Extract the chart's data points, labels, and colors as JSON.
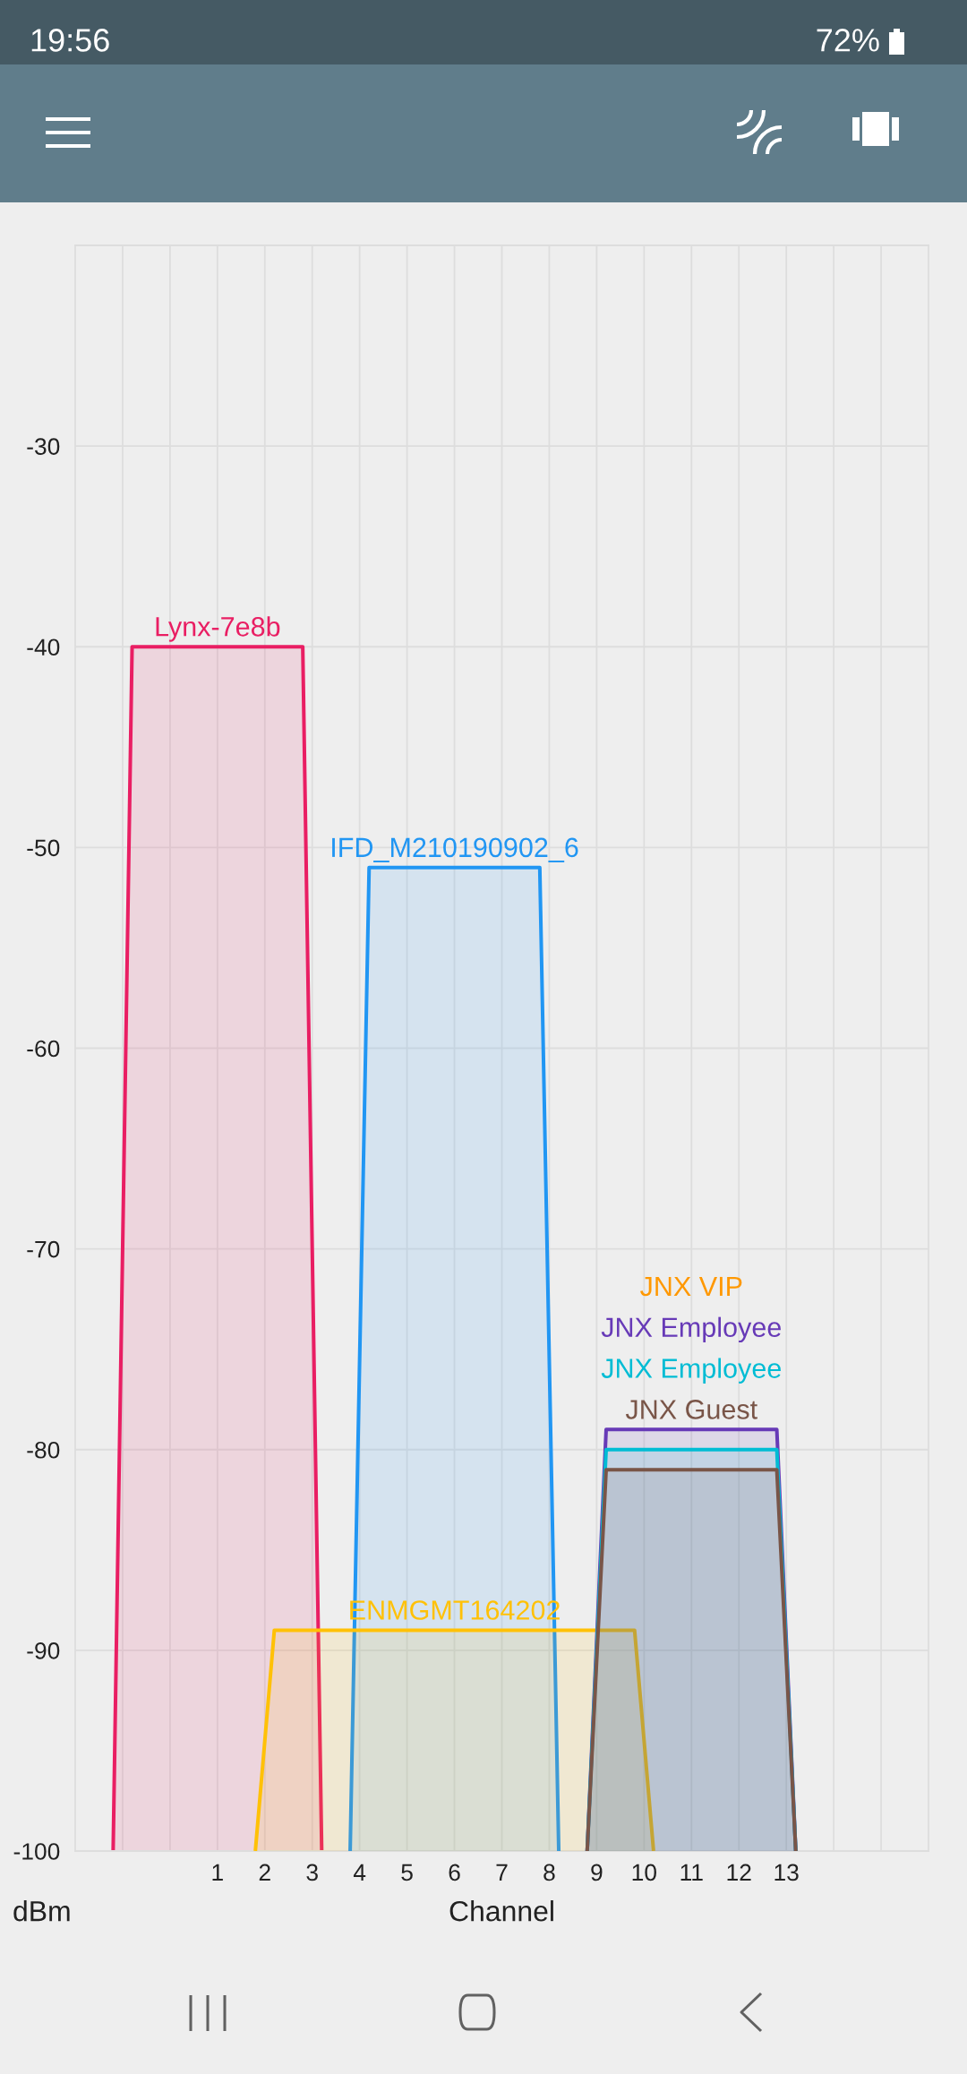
{
  "chart_data": {
    "type": "area",
    "series": [
      {
        "name": "Lynx-7e8b",
        "color": "#e91e63",
        "x": [
          -1.2,
          -0.8,
          2.8,
          3.2
        ],
        "values": [
          -100,
          -40,
          -40,
          -100
        ]
      },
      {
        "name": "IFD_M210190902_6",
        "color": "#2196f3",
        "x": [
          3.8,
          4.2,
          7.8,
          8.2
        ],
        "values": [
          -100,
          -51,
          -51,
          -100
        ]
      },
      {
        "name": "ENMGMT164202",
        "color": "#ffc107",
        "x": [
          1.8,
          2.2,
          9.8,
          10.2
        ],
        "values": [
          -100,
          -89,
          -89,
          -100
        ]
      },
      {
        "name": "JNX VIP",
        "color": "#ff9800",
        "values": [
          null
        ]
      },
      {
        "name": "JNX Employee",
        "color": "#673ab7",
        "x": [
          8.8,
          9.2,
          12.8,
          13.2
        ],
        "values": [
          -100,
          -79,
          -79,
          -100
        ]
      },
      {
        "name": "JNX Employee",
        "color": "#00bcd4",
        "x": [
          8.8,
          9.2,
          12.8,
          13.2
        ],
        "values": [
          -100,
          -80,
          -80,
          -100
        ]
      },
      {
        "name": "JNX Guest",
        "color": "#795548",
        "x": [
          8.8,
          9.2,
          12.8,
          13.2
        ],
        "values": [
          -100,
          -81,
          -81,
          -100
        ]
      }
    ],
    "xlim": [
      -2,
      16
    ],
    "ylim": [
      -100,
      -20
    ],
    "xticks": [
      {
        "value": -1,
        "label": null
      },
      {
        "value": 0,
        "label": null
      },
      1,
      2,
      3,
      4,
      5,
      6,
      7,
      8,
      9,
      10,
      11,
      12,
      13,
      {
        "value": 14,
        "label": null
      },
      {
        "value": 15,
        "label": null
      }
    ],
    "yticks": [
      -100,
      -90,
      -80,
      -70,
      -60,
      -50,
      -40,
      -30
    ],
    "xlabel": "Channel",
    "ylabel": "dBm",
    "grid": true,
    "annotations": [
      "19:56",
      "72%"
    ]
  }
}
